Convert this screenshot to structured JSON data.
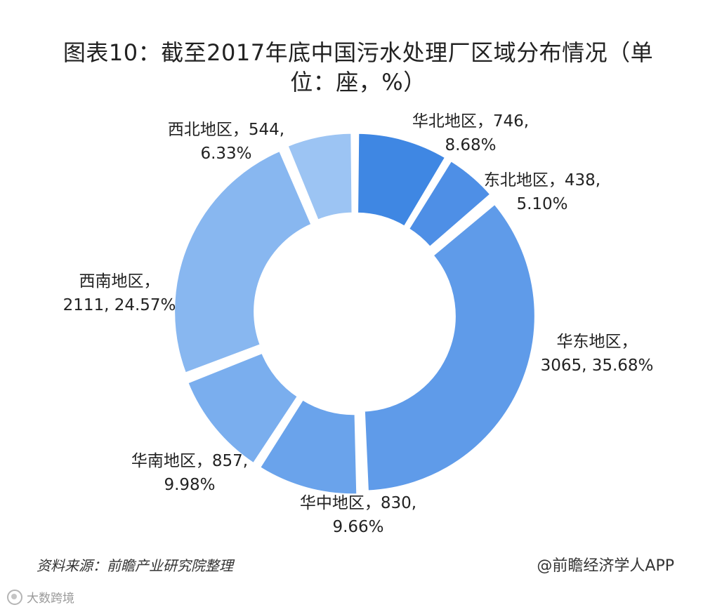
{
  "title_line1": "图表10：截至2017年底中国污水处理厂区域分布情况（单",
  "title_line2": "位：座，%）",
  "source": "资料来源：前瞻产业研究院整理",
  "credit": "@前瞻经济学人APP",
  "watermark": "大数跨境",
  "chart_data": {
    "type": "pie",
    "variant": "donut",
    "title": "图表10：截至2017年底中国污水处理厂区域分布情况（单位：座，%）",
    "categories": [
      "华北地区",
      "东北地区",
      "华东地区",
      "华中地区",
      "华南地区",
      "西南地区",
      "西北地区"
    ],
    "values": [
      746,
      438,
      3065,
      830,
      857,
      2111,
      544
    ],
    "percents": [
      8.68,
      5.1,
      35.68,
      9.66,
      9.98,
      24.57,
      6.33
    ],
    "labels": [
      {
        "line1": "华北地区，746,",
        "line2": "8.68%"
      },
      {
        "line1": "东北地区，438,",
        "line2": "5.10%"
      },
      {
        "line1": "华东地区，",
        "line2": "3065, 35.68%"
      },
      {
        "line1": "华中地区，830,",
        "line2": "9.66%"
      },
      {
        "line1": "华南地区，857,",
        "line2": "9.98%"
      },
      {
        "line1": "西南地区，",
        "line2": "2111, 24.57%"
      },
      {
        "line1": "西北地区，544,",
        "line2": "6.33%"
      }
    ],
    "colors": [
      "#3f87e3",
      "#4e8fe6",
      "#5f9be9",
      "#6aa3eb",
      "#7aaeee",
      "#88b7f0",
      "#9cc4f3"
    ],
    "legend": "none"
  }
}
